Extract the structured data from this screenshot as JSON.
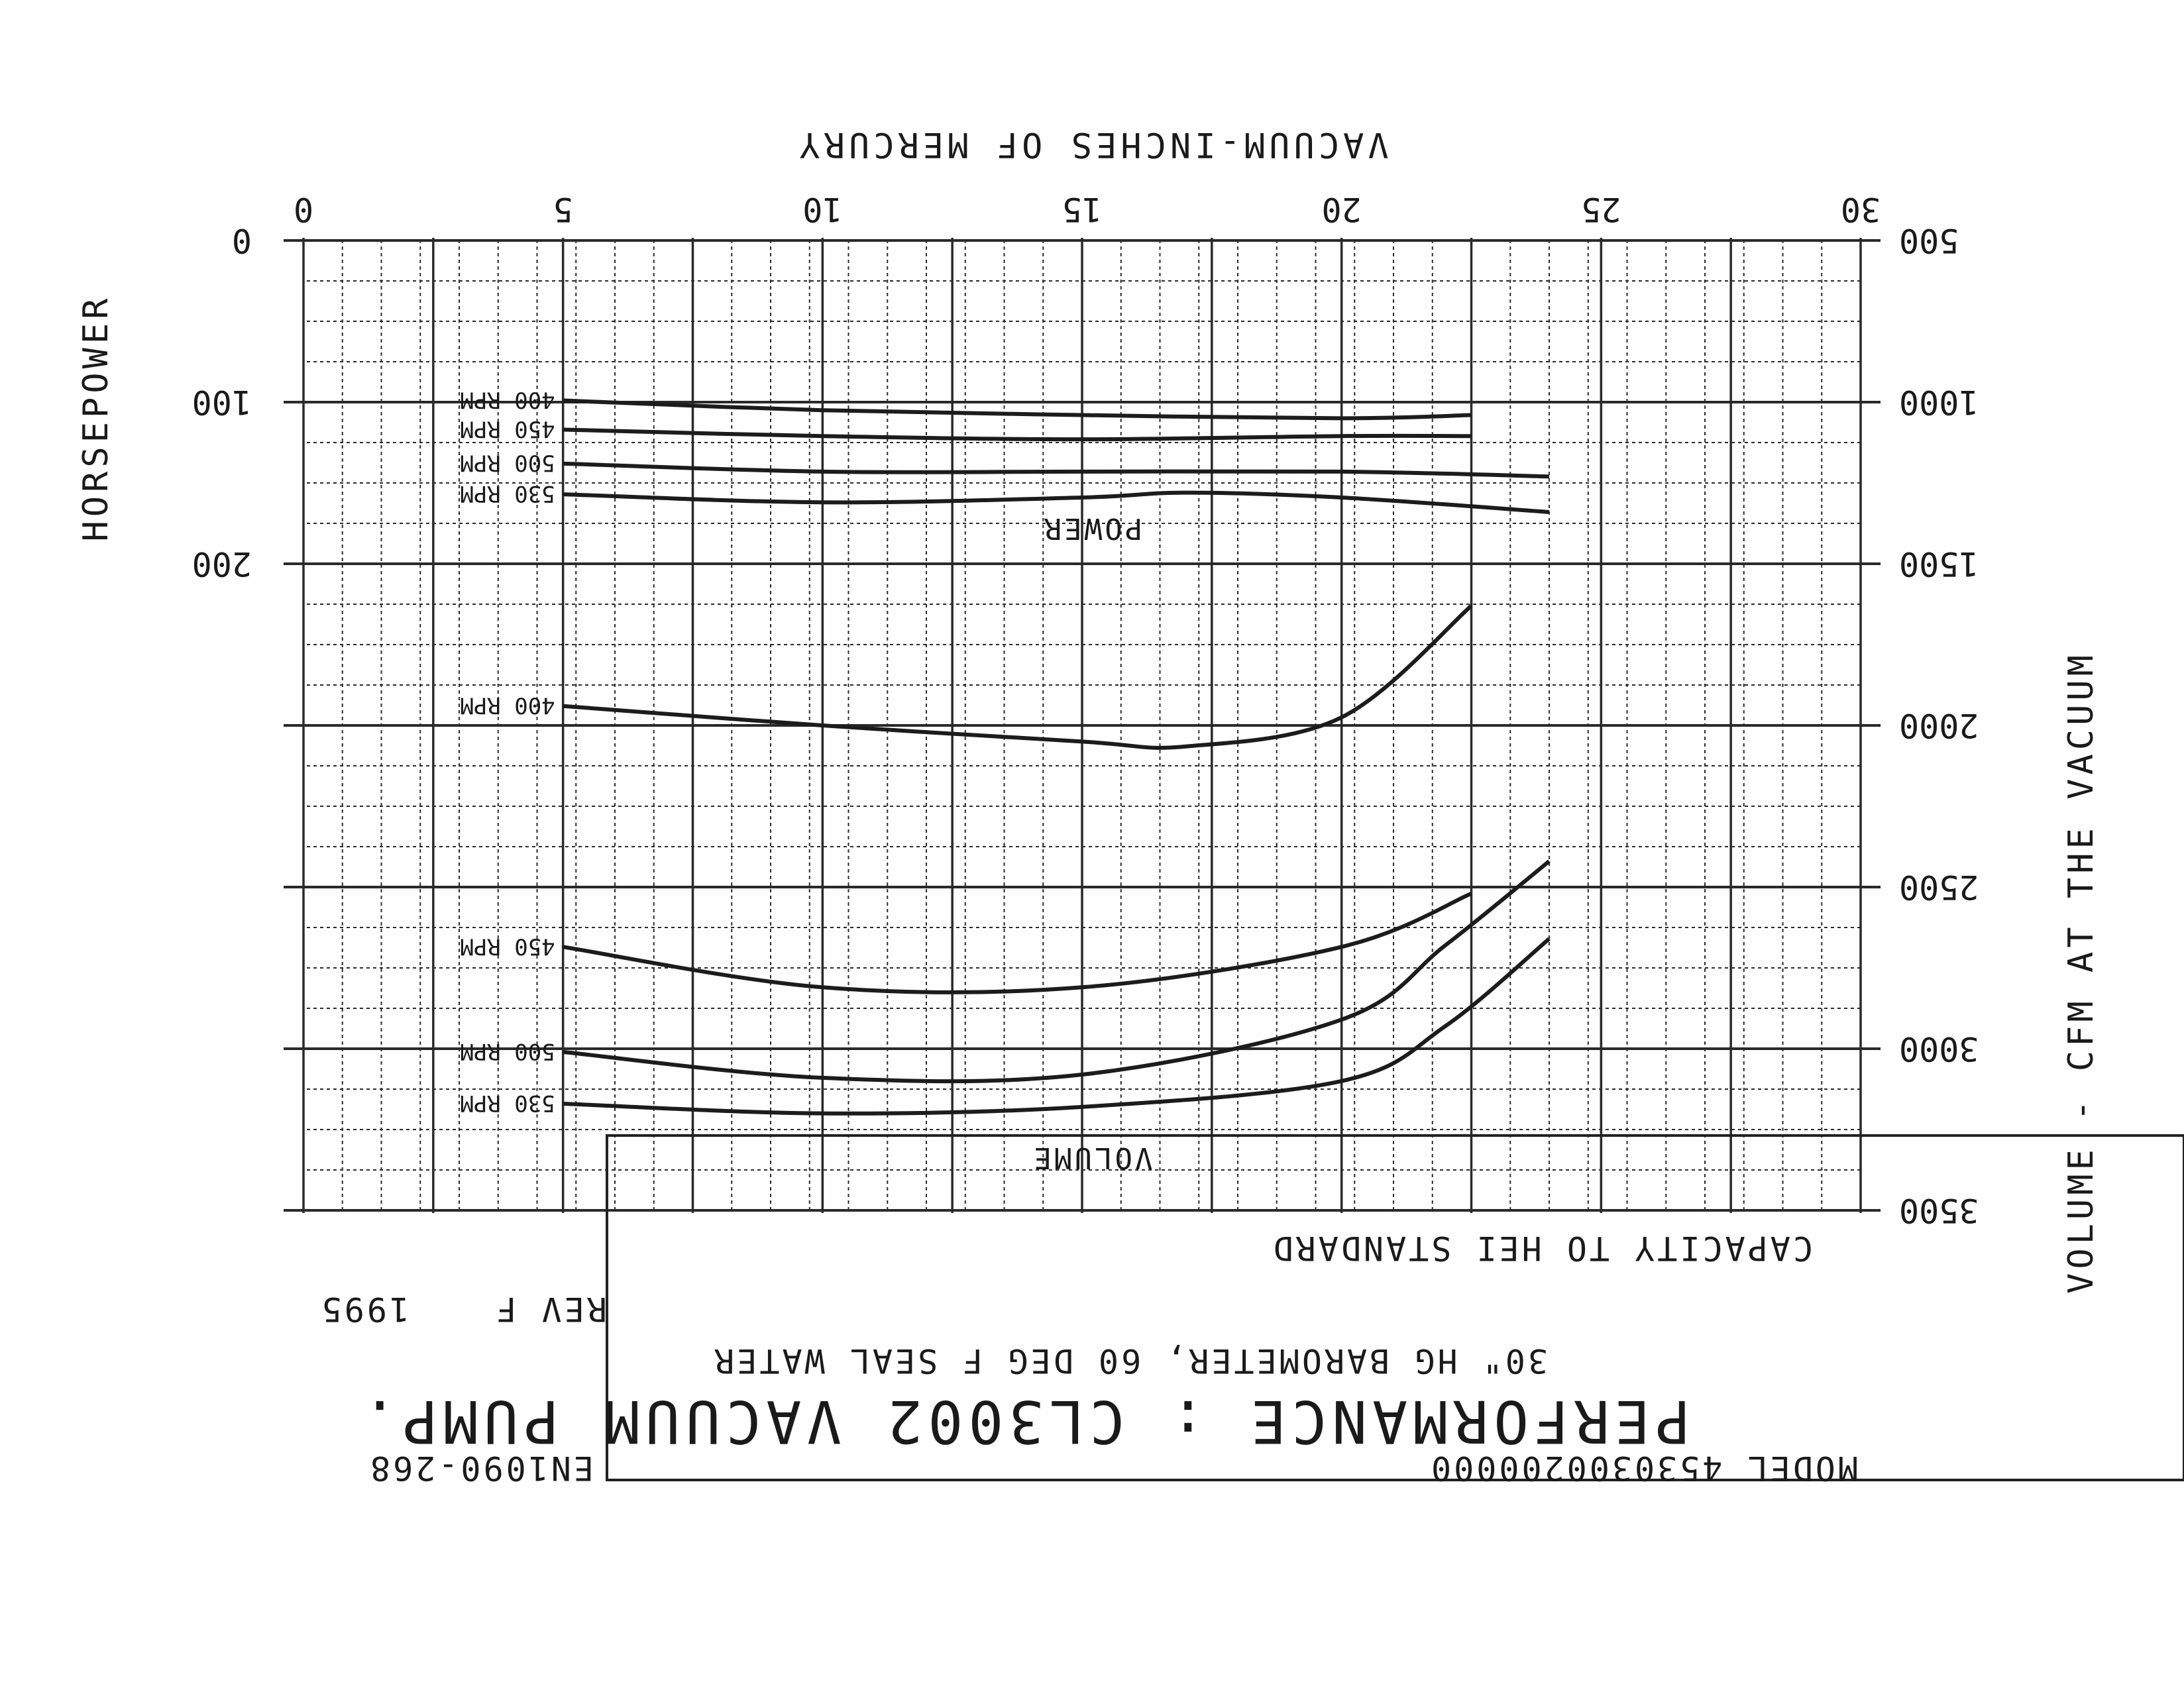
{
  "chart_data": {
    "type": "line",
    "orientation_note": "",
    "x_axis": {
      "label": "VACUUM-INCHES OF MERCURY",
      "range": [
        30,
        0
      ],
      "ticks": [
        "30",
        "25",
        "20",
        "15",
        "10",
        "5",
        "0"
      ]
    },
    "y_axis_left": {
      "label": "HORSEPOWER",
      "ticks": [
        "0",
        "100",
        "200"
      ]
    },
    "y_axis_right": {
      "label": "VOLUME - CFM AT THE VACUUM",
      "range": [
        500,
        3500
      ],
      "ticks": [
        "500",
        "1000",
        "1500",
        "2000",
        "2500",
        "3000",
        "3500"
      ]
    },
    "panels": {
      "power": "POWER",
      "volume": "VOLUME"
    },
    "power_series": [
      {
        "name": "400 RPM",
        "x": [
          22.5,
          20,
          15,
          10,
          5
        ],
        "y": [
          108,
          110,
          108,
          105,
          99
        ]
      },
      {
        "name": "450 RPM",
        "x": [
          22.5,
          20,
          15,
          10,
          5
        ],
        "y": [
          121,
          121,
          123,
          121,
          117
        ]
      },
      {
        "name": "500 RPM",
        "x": [
          24,
          20,
          15,
          10,
          5
        ],
        "y": [
          146,
          143,
          143,
          143,
          138
        ]
      },
      {
        "name": "530 RPM",
        "x": [
          24,
          20,
          17,
          15,
          10,
          5
        ],
        "y": [
          168,
          159,
          156,
          159,
          162,
          157
        ]
      }
    ],
    "volume_series": [
      {
        "name": "400 RPM",
        "x": [
          22.5,
          20,
          17,
          15,
          10,
          5
        ],
        "y": [
          1630,
          1975,
          2065,
          2050,
          2000,
          1940
        ]
      },
      {
        "name": "450 RPM",
        "x": [
          22.5,
          20,
          15,
          10,
          5
        ],
        "y": [
          2520,
          2685,
          2810,
          2810,
          2685
        ]
      },
      {
        "name": "500 RPM",
        "x": [
          24,
          22,
          20,
          15,
          10,
          5
        ],
        "y": [
          2420,
          2680,
          2910,
          3080,
          3090,
          3010
        ]
      },
      {
        "name": "530 RPM",
        "x": [
          24,
          22,
          20,
          15,
          10,
          5
        ],
        "y": [
          2660,
          2930,
          3100,
          3180,
          3200,
          3170
        ]
      }
    ]
  },
  "labels": {
    "capacity_note": "CAPACITY TO HEI STANDARD",
    "rev": "REV F",
    "year": "1995",
    "conditions": "30\" HG BAROMETER, 60 DEG F SEAL WATER",
    "title": "PERFORMANCE : CL3002 VACUUM PUMP.",
    "model": "MODEL 4530300200000",
    "doc_number": "EN1090-268"
  }
}
